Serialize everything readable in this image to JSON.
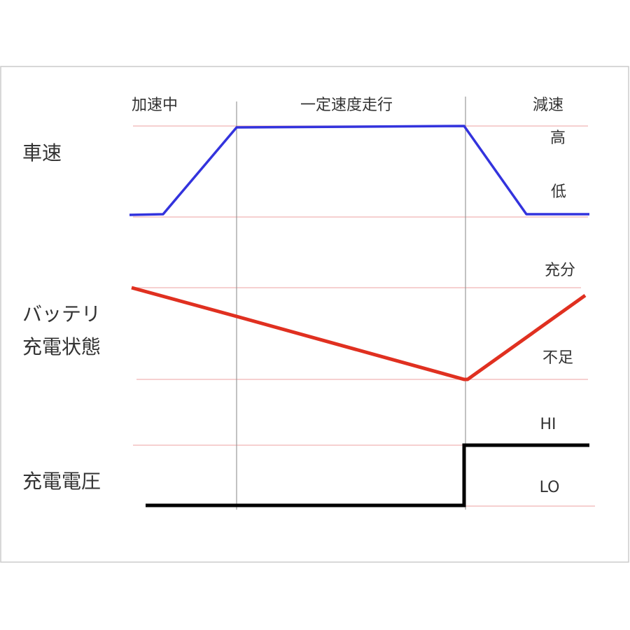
{
  "phases": [
    "加速中",
    "一定速度走行",
    "減速"
  ],
  "signals": [
    {
      "label": "車速",
      "levels": {
        "high": "高",
        "low": "低"
      },
      "color": "#3333dd"
    },
    {
      "label_lines": [
        "バッテリ",
        "充電状態"
      ],
      "levels": {
        "high": "充分",
        "low": "不足"
      },
      "color": "#e03020"
    },
    {
      "label": "充電電圧",
      "levels": {
        "high": "HI",
        "low": "LO"
      },
      "color": "#000000"
    }
  ],
  "colors": {
    "guide_line": "#f4c0c0",
    "phase_divider": "#999999",
    "frame": "#cccccc"
  }
}
